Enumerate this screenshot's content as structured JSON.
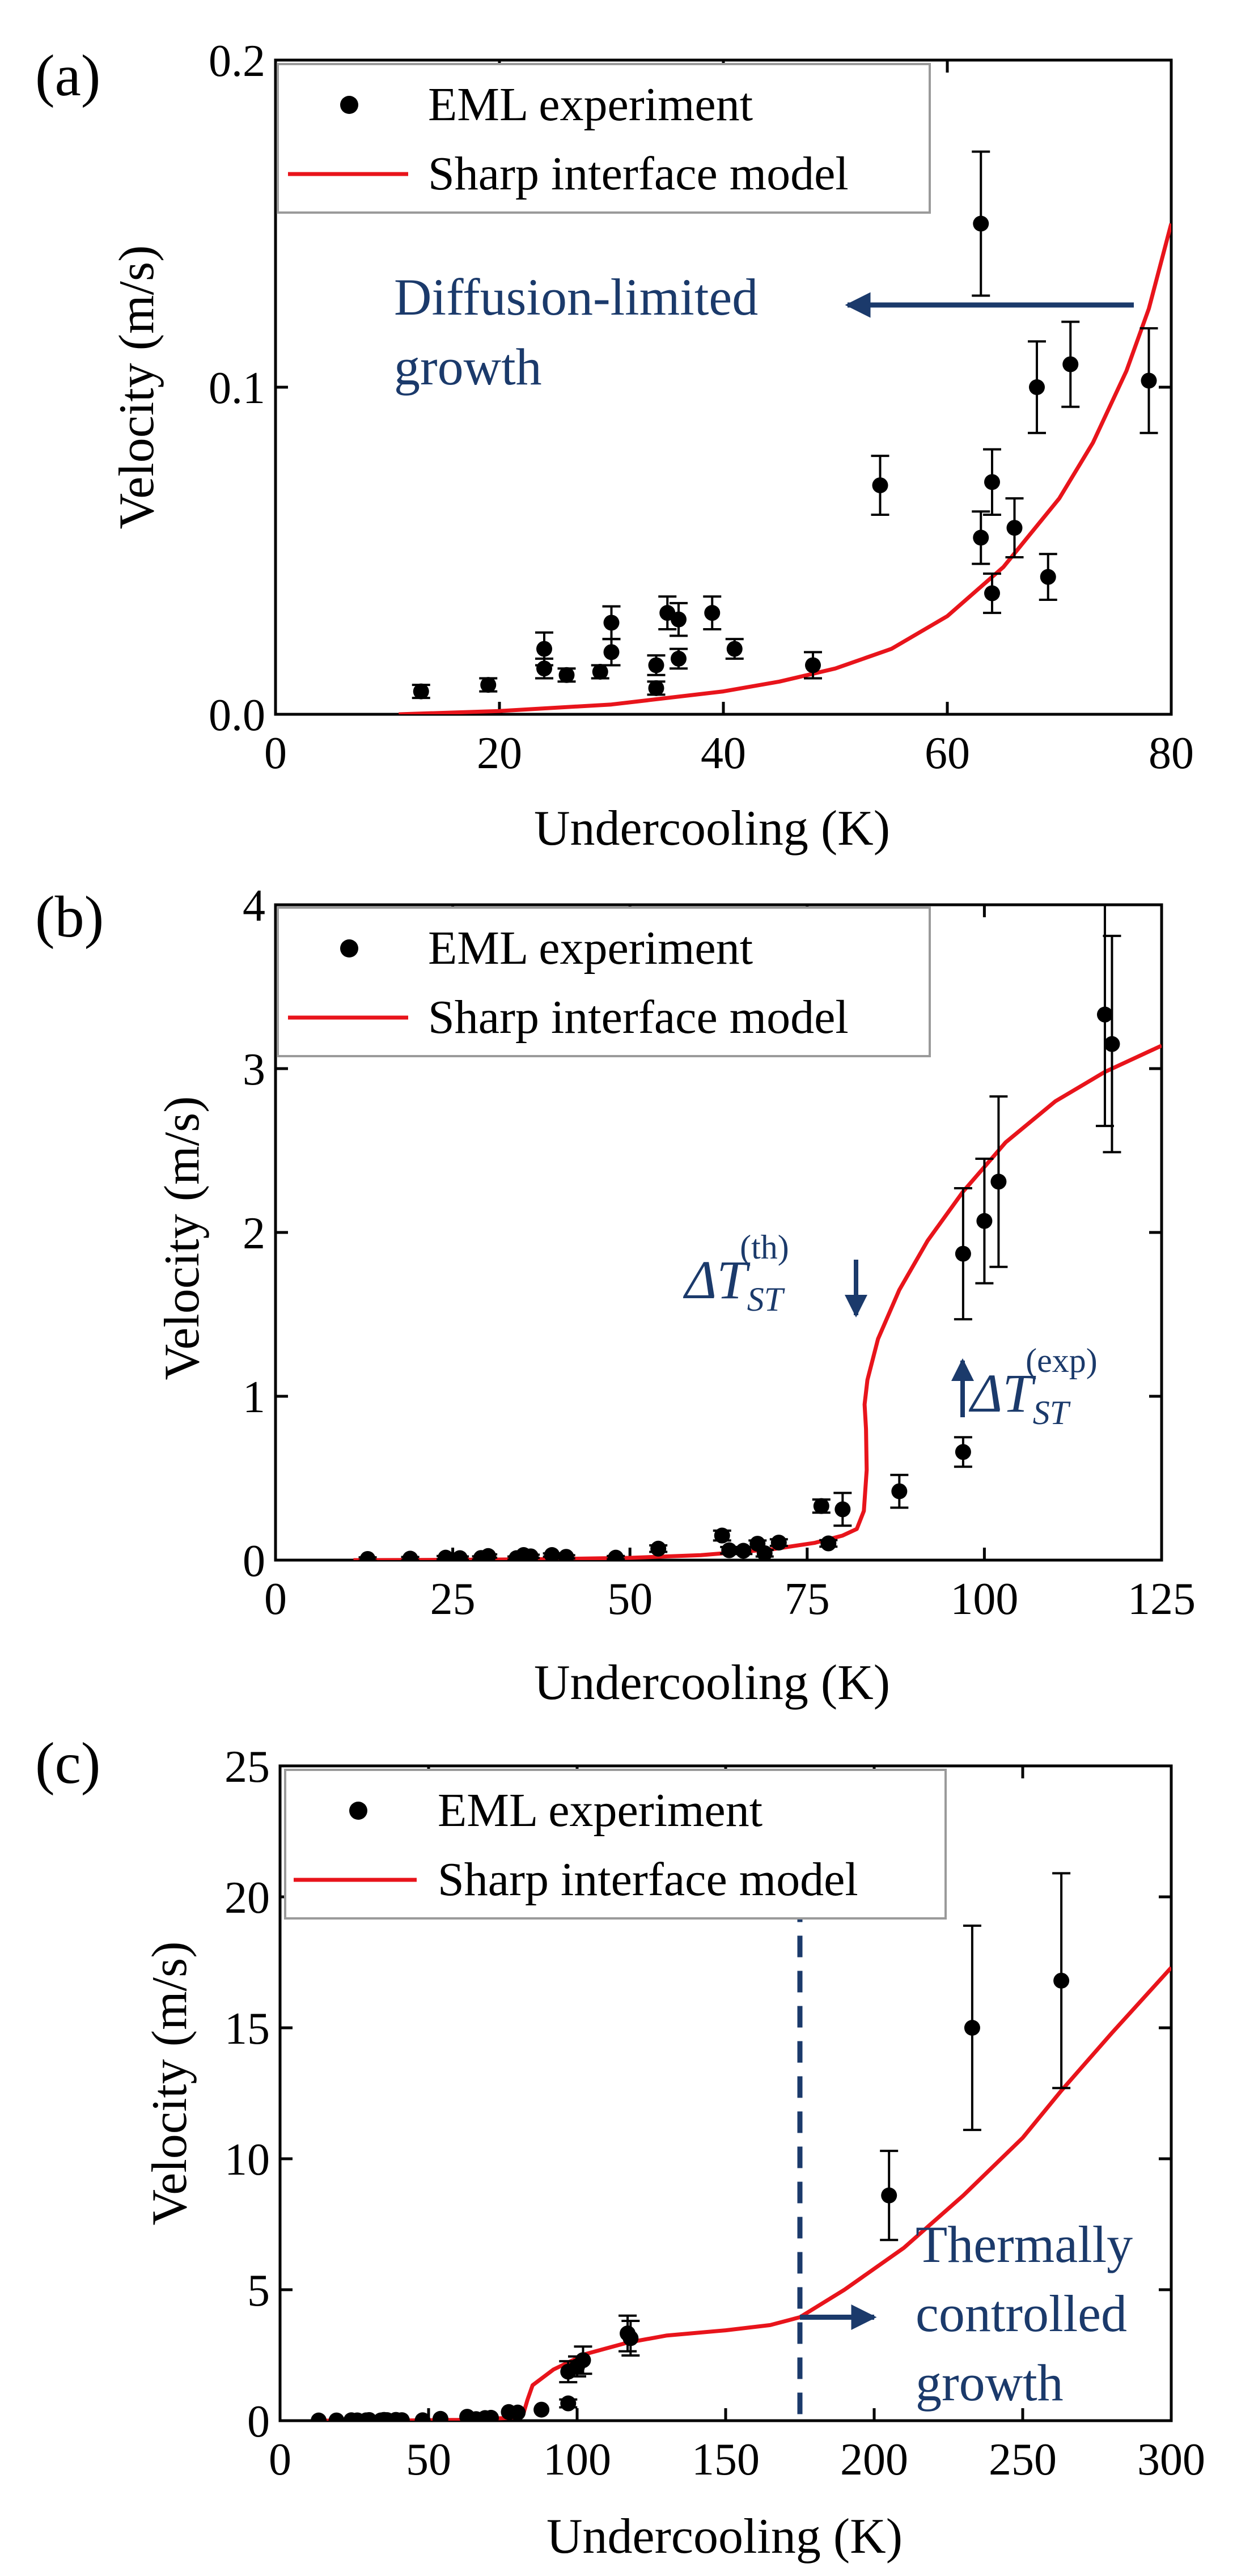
{
  "figure": {
    "background": "#ffffff"
  },
  "colors": {
    "model": "#e8141b",
    "points": "#000000",
    "annotation": "#1b3a6b"
  },
  "chart_data": [
    {
      "panel": "(a)",
      "type": "scatter",
      "xlabel": "Undercooling (K)",
      "ylabel": "Velocity (m/s)",
      "xlim": [
        0,
        80
      ],
      "ylim": [
        0,
        0.2
      ],
      "xticks": [
        0,
        20,
        40,
        60,
        80
      ],
      "yticks": [
        0.0,
        0.1,
        0.2
      ],
      "ytick_labels": [
        "0.0",
        "0.1",
        "0.2"
      ],
      "legend": {
        "location": "top-left",
        "experiment": "EML experiment",
        "model": "Sharp interface model"
      },
      "series": [
        {
          "name": "EML experiment",
          "points": [
            {
              "x": 13,
              "y": 0.007,
              "err": 0.002
            },
            {
              "x": 19,
              "y": 0.009,
              "err": 0.002
            },
            {
              "x": 24,
              "y": 0.014,
              "err": 0.003
            },
            {
              "x": 24,
              "y": 0.02,
              "err": 0.005
            },
            {
              "x": 26,
              "y": 0.012,
              "err": 0.002
            },
            {
              "x": 29,
              "y": 0.013,
              "err": 0.002
            },
            {
              "x": 30,
              "y": 0.019,
              "err": 0.004
            },
            {
              "x": 30,
              "y": 0.028,
              "err": 0.005
            },
            {
              "x": 34,
              "y": 0.008,
              "err": 0.002
            },
            {
              "x": 34,
              "y": 0.015,
              "err": 0.003
            },
            {
              "x": 35,
              "y": 0.031,
              "err": 0.005
            },
            {
              "x": 36,
              "y": 0.017,
              "err": 0.003
            },
            {
              "x": 36,
              "y": 0.029,
              "err": 0.005
            },
            {
              "x": 39,
              "y": 0.031,
              "err": 0.005
            },
            {
              "x": 41,
              "y": 0.02,
              "err": 0.003
            },
            {
              "x": 48,
              "y": 0.015,
              "err": 0.004
            },
            {
              "x": 54,
              "y": 0.07,
              "err": 0.009
            },
            {
              "x": 63,
              "y": 0.15,
              "err": 0.022
            },
            {
              "x": 63,
              "y": 0.054,
              "err": 0.008
            },
            {
              "x": 64,
              "y": 0.037,
              "err": 0.006
            },
            {
              "x": 64,
              "y": 0.071,
              "err": 0.01
            },
            {
              "x": 66,
              "y": 0.057,
              "err": 0.009
            },
            {
              "x": 68,
              "y": 0.1,
              "err": 0.014
            },
            {
              "x": 69,
              "y": 0.042,
              "err": 0.007
            },
            {
              "x": 71,
              "y": 0.107,
              "err": 0.013
            },
            {
              "x": 78,
              "y": 0.102,
              "err": 0.016
            }
          ]
        },
        {
          "name": "Sharp interface model",
          "line": [
            {
              "x": 11,
              "y": 0.0
            },
            {
              "x": 20,
              "y": 0.001
            },
            {
              "x": 30,
              "y": 0.003
            },
            {
              "x": 40,
              "y": 0.007
            },
            {
              "x": 45,
              "y": 0.01
            },
            {
              "x": 50,
              "y": 0.014
            },
            {
              "x": 55,
              "y": 0.02
            },
            {
              "x": 60,
              "y": 0.03
            },
            {
              "x": 65,
              "y": 0.045
            },
            {
              "x": 70,
              "y": 0.066
            },
            {
              "x": 73,
              "y": 0.083
            },
            {
              "x": 76,
              "y": 0.105
            },
            {
              "x": 78,
              "y": 0.124
            },
            {
              "x": 80,
              "y": 0.15
            }
          ]
        }
      ],
      "annotations": [
        {
          "lines": [
            "Diffusion-limited",
            "growth"
          ],
          "arrow": "leftward at y = 0.125 from x = 78 to x = 52"
        }
      ]
    },
    {
      "panel": "(b)",
      "type": "scatter",
      "xlabel": "Undercooling (K)",
      "ylabel": "Velocity (m/s)",
      "xlim": [
        0,
        125
      ],
      "ylim": [
        0,
        4
      ],
      "xticks": [
        0,
        25,
        50,
        75,
        100,
        125
      ],
      "yticks": [
        0,
        1,
        2,
        3,
        4
      ],
      "legend": {
        "location": "top-left",
        "experiment": "EML experiment",
        "model": "Sharp interface model"
      },
      "series": [
        {
          "name": "EML experiment",
          "points": [
            {
              "x": 13,
              "y": 0.007,
              "err": 0.01
            },
            {
              "x": 19,
              "y": 0.009,
              "err": 0.01
            },
            {
              "x": 24,
              "y": 0.015,
              "err": 0.01
            },
            {
              "x": 26,
              "y": 0.012,
              "err": 0.01
            },
            {
              "x": 29,
              "y": 0.013,
              "err": 0.01
            },
            {
              "x": 30,
              "y": 0.025,
              "err": 0.01
            },
            {
              "x": 34,
              "y": 0.012,
              "err": 0.01
            },
            {
              "x": 35,
              "y": 0.031,
              "err": 0.01
            },
            {
              "x": 36,
              "y": 0.023,
              "err": 0.01
            },
            {
              "x": 39,
              "y": 0.031,
              "err": 0.01
            },
            {
              "x": 41,
              "y": 0.02,
              "err": 0.01
            },
            {
              "x": 48,
              "y": 0.015,
              "err": 0.01
            },
            {
              "x": 54,
              "y": 0.07,
              "err": 0.02
            },
            {
              "x": 63,
              "y": 0.15,
              "err": 0.03
            },
            {
              "x": 64,
              "y": 0.06,
              "err": 0.02
            },
            {
              "x": 66,
              "y": 0.057,
              "err": 0.02
            },
            {
              "x": 68,
              "y": 0.1,
              "err": 0.02
            },
            {
              "x": 69,
              "y": 0.042,
              "err": 0.02
            },
            {
              "x": 71,
              "y": 0.107,
              "err": 0.02
            },
            {
              "x": 77,
              "y": 0.33,
              "err": 0.04
            },
            {
              "x": 78,
              "y": 0.102,
              "err": 0.02
            },
            {
              "x": 80,
              "y": 0.31,
              "err": 0.1
            },
            {
              "x": 88,
              "y": 0.42,
              "err": 0.1
            },
            {
              "x": 97,
              "y": 0.66,
              "err": 0.09
            },
            {
              "x": 97,
              "y": 1.87,
              "err": 0.4
            },
            {
              "x": 100,
              "y": 2.07,
              "err": 0.38
            },
            {
              "x": 102,
              "y": 2.31,
              "err": 0.52
            },
            {
              "x": 117,
              "y": 3.33,
              "err": 0.68
            },
            {
              "x": 118,
              "y": 3.15,
              "err": 0.66
            }
          ]
        },
        {
          "name": "Sharp interface model",
          "line": [
            {
              "x": 11,
              "y": 0.0
            },
            {
              "x": 20,
              "y": 0.001
            },
            {
              "x": 30,
              "y": 0.003
            },
            {
              "x": 40,
              "y": 0.007
            },
            {
              "x": 50,
              "y": 0.014
            },
            {
              "x": 60,
              "y": 0.03
            },
            {
              "x": 70,
              "y": 0.066
            },
            {
              "x": 76,
              "y": 0.105
            },
            {
              "x": 80,
              "y": 0.15
            },
            {
              "x": 82,
              "y": 0.19
            },
            {
              "x": 83,
              "y": 0.3
            },
            {
              "x": 83.4,
              "y": 0.55
            },
            {
              "x": 83.3,
              "y": 0.8
            },
            {
              "x": 83.1,
              "y": 0.95
            },
            {
              "x": 83.5,
              "y": 1.1
            },
            {
              "x": 85,
              "y": 1.35
            },
            {
              "x": 88,
              "y": 1.65
            },
            {
              "x": 92,
              "y": 1.95
            },
            {
              "x": 97,
              "y": 2.25
            },
            {
              "x": 103,
              "y": 2.55
            },
            {
              "x": 110,
              "y": 2.8
            },
            {
              "x": 117,
              "y": 2.98
            },
            {
              "x": 125,
              "y": 3.14
            }
          ]
        }
      ],
      "annotations": [
        {
          "label": "ΔT",
          "sub": "ST",
          "sup": "(th)",
          "arrow": "downward at x = 82"
        },
        {
          "label": "ΔT",
          "sub": "ST",
          "sup": "(exp)",
          "arrow": "upward at x = 97"
        }
      ]
    },
    {
      "panel": "(c)",
      "type": "scatter",
      "xlabel": "Undercooling (K)",
      "ylabel": "Velocity (m/s)",
      "xlim": [
        0,
        300
      ],
      "ylim": [
        0,
        25
      ],
      "xticks": [
        0,
        50,
        100,
        150,
        200,
        250,
        300
      ],
      "yticks": [
        0,
        5,
        10,
        15,
        20,
        25
      ],
      "legend": {
        "location": "top-left",
        "experiment": "EML experiment",
        "model": "Sharp interface model"
      },
      "series": [
        {
          "name": "EML experiment",
          "points": [
            {
              "x": 13,
              "y": 0.007,
              "err": 0.0
            },
            {
              "x": 19,
              "y": 0.009,
              "err": 0.0
            },
            {
              "x": 24,
              "y": 0.015,
              "err": 0.0
            },
            {
              "x": 26,
              "y": 0.012,
              "err": 0.0
            },
            {
              "x": 29,
              "y": 0.013,
              "err": 0.0
            },
            {
              "x": 30,
              "y": 0.025,
              "err": 0.0
            },
            {
              "x": 34,
              "y": 0.012,
              "err": 0.0
            },
            {
              "x": 35,
              "y": 0.031,
              "err": 0.0
            },
            {
              "x": 36,
              "y": 0.023,
              "err": 0.0
            },
            {
              "x": 39,
              "y": 0.031,
              "err": 0.0
            },
            {
              "x": 41,
              "y": 0.02,
              "err": 0.0
            },
            {
              "x": 48,
              "y": 0.015,
              "err": 0.0
            },
            {
              "x": 54,
              "y": 0.07,
              "err": 0.0
            },
            {
              "x": 63,
              "y": 0.15,
              "err": 0.0
            },
            {
              "x": 66,
              "y": 0.06,
              "err": 0.0
            },
            {
              "x": 69,
              "y": 0.1,
              "err": 0.0
            },
            {
              "x": 71,
              "y": 0.11,
              "err": 0.0
            },
            {
              "x": 77,
              "y": 0.33,
              "err": 0.0
            },
            {
              "x": 80,
              "y": 0.31,
              "err": 0.0
            },
            {
              "x": 88,
              "y": 0.42,
              "err": 0.0
            },
            {
              "x": 97,
              "y": 0.66,
              "err": 0.15
            },
            {
              "x": 97,
              "y": 1.87,
              "err": 0.4
            },
            {
              "x": 100,
              "y": 2.07,
              "err": 0.38
            },
            {
              "x": 102,
              "y": 2.31,
              "err": 0.52
            },
            {
              "x": 117,
              "y": 3.33,
              "err": 0.68
            },
            {
              "x": 118,
              "y": 3.15,
              "err": 0.66
            },
            {
              "x": 205,
              "y": 8.6,
              "err": 1.7
            },
            {
              "x": 233,
              "y": 15.0,
              "err": 3.9
            },
            {
              "x": 263,
              "y": 16.8,
              "err": 4.1
            }
          ]
        },
        {
          "name": "Sharp interface model",
          "line": [
            {
              "x": 11,
              "y": 0.0
            },
            {
              "x": 40,
              "y": 0.007
            },
            {
              "x": 60,
              "y": 0.03
            },
            {
              "x": 76,
              "y": 0.1
            },
            {
              "x": 80,
              "y": 0.15
            },
            {
              "x": 82,
              "y": 0.3
            },
            {
              "x": 83.3,
              "y": 0.8
            },
            {
              "x": 85,
              "y": 1.35
            },
            {
              "x": 92,
              "y": 1.95
            },
            {
              "x": 103,
              "y": 2.55
            },
            {
              "x": 117,
              "y": 2.98
            },
            {
              "x": 130,
              "y": 3.25
            },
            {
              "x": 150,
              "y": 3.45
            },
            {
              "x": 165,
              "y": 3.65
            },
            {
              "x": 175,
              "y": 3.95
            },
            {
              "x": 190,
              "y": 5.0
            },
            {
              "x": 210,
              "y": 6.6
            },
            {
              "x": 230,
              "y": 8.6
            },
            {
              "x": 250,
              "y": 10.8
            },
            {
              "x": 263,
              "y": 12.6
            },
            {
              "x": 280,
              "y": 14.8
            },
            {
              "x": 300,
              "y": 17.3
            }
          ]
        }
      ],
      "vline": {
        "x": 175,
        "style": "dashed"
      },
      "annotations": [
        {
          "lines": [
            "Thermally",
            "controlled",
            "growth"
          ],
          "arrow": "rightward at y = 3.95 from x = 175 to x = 197"
        }
      ]
    }
  ]
}
